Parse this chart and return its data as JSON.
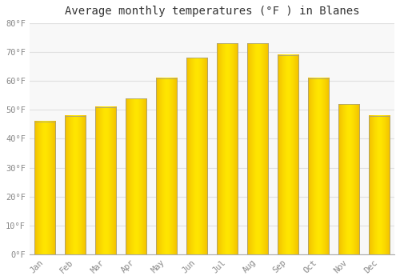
{
  "title": "Average monthly temperatures (°F ) in Blanes",
  "months": [
    "Jan",
    "Feb",
    "Mar",
    "Apr",
    "May",
    "Jun",
    "Jul",
    "Aug",
    "Sep",
    "Oct",
    "Nov",
    "Dec"
  ],
  "values": [
    46,
    48,
    51,
    54,
    61,
    68,
    73,
    73,
    69,
    61,
    52,
    48
  ],
  "bar_color_center": "#FFD040",
  "bar_color_edge": "#E08000",
  "background_color": "#FFFFFF",
  "plot_bg_color": "#F8F8F8",
  "ylim": [
    0,
    80
  ],
  "yticks": [
    0,
    10,
    20,
    30,
    40,
    50,
    60,
    70,
    80
  ],
  "ytick_labels": [
    "0°F",
    "10°F",
    "20°F",
    "30°F",
    "40°F",
    "50°F",
    "60°F",
    "70°F",
    "80°F"
  ],
  "title_fontsize": 10,
  "tick_fontsize": 7.5,
  "grid_color": "#E0E0E0",
  "tick_color": "#888888",
  "border_color": "#999999"
}
